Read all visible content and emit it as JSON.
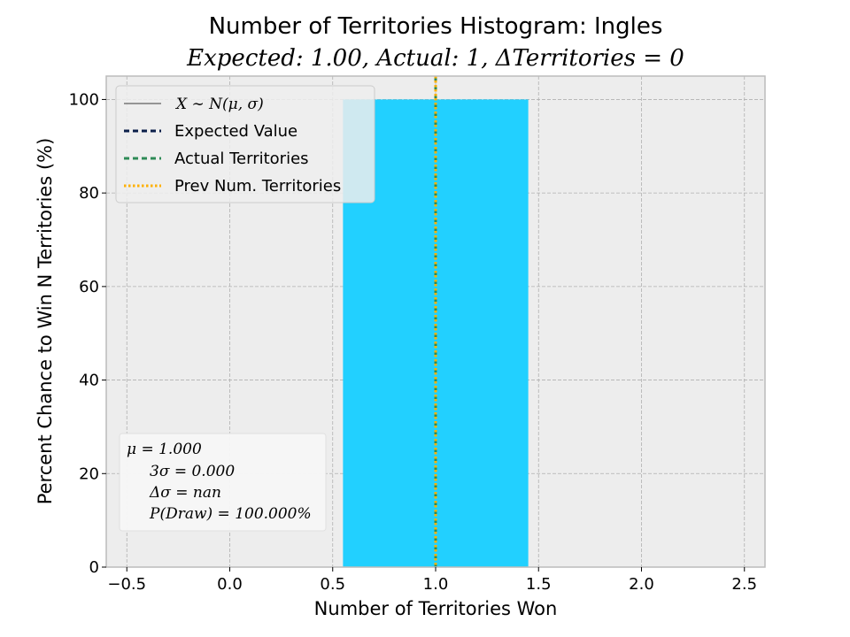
{
  "chart_data": {
    "type": "bar",
    "title": "Number of Territories Histogram: Ingles",
    "subtitle": "Expected: 1.00, Actual: 1, ΔTerritories = 0",
    "xlabel": "Number of Territories Won",
    "ylabel": "Percent Chance to Win N Territories (%)",
    "xlim": [
      -0.6,
      2.6
    ],
    "ylim": [
      0,
      105
    ],
    "xticks": [
      -0.5,
      0.0,
      0.5,
      1.0,
      1.5,
      2.0,
      2.5
    ],
    "xtick_labels": [
      "−0.5",
      "0.0",
      "0.5",
      "1.0",
      "1.5",
      "2.0",
      "2.5"
    ],
    "yticks": [
      0,
      20,
      40,
      60,
      80,
      100
    ],
    "ytick_labels": [
      "0",
      "20",
      "40",
      "60",
      "80",
      "100"
    ],
    "grid": true,
    "bars": [
      {
        "x_start": 0.55,
        "x_end": 1.45,
        "value": 100,
        "color": "#22d0ff"
      }
    ],
    "lines": [
      {
        "name": "Expected Value",
        "x": 1.0,
        "color": "#0b1f4a",
        "style": "dashed"
      },
      {
        "name": "Actual Territories",
        "x": 1.0,
        "color": "#2e8b57",
        "style": "dashed"
      },
      {
        "name": "Prev Num. Territories",
        "x": 1.0,
        "color": "#ffb000",
        "style": "dotted"
      }
    ],
    "legend": {
      "placement": "top-left",
      "entries": [
        {
          "label": "X ∼ N(μ, σ)",
          "color": "#000000",
          "style": "solid-thin",
          "math": true
        },
        {
          "label": "Expected Value",
          "color": "#0b1f4a",
          "style": "dashed"
        },
        {
          "label": "Actual Territories",
          "color": "#2e8b57",
          "style": "dashed"
        },
        {
          "label": "Prev Num. Territories",
          "color": "#ffb000",
          "style": "dotted"
        }
      ]
    },
    "stats_box": {
      "placement": "bottom-left",
      "lines": [
        "μ = 1.000",
        "3σ = 0.000",
        "Δσ = nan",
        "P(Draw) = 100.000%"
      ]
    },
    "colors": {
      "plot_background": "#ededed",
      "grid": "#b0b0b0",
      "spine": "#bcbcbc"
    }
  }
}
